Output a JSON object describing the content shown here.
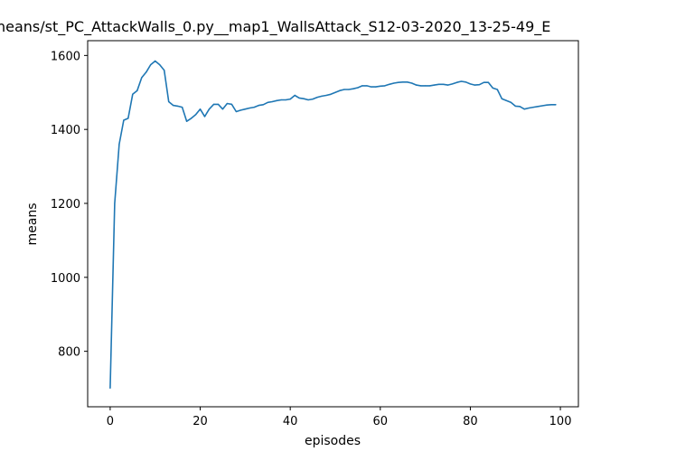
{
  "chart_data": {
    "type": "line",
    "title": "neans/st_PC_AttackWalls_0.py__map1_WallsAttack_S12-03-2020_13-25-49_E",
    "xlabel": "episodes",
    "ylabel": "means",
    "xlim": [
      -5,
      104
    ],
    "ylim": [
      650,
      1640
    ],
    "xticks": [
      0,
      20,
      40,
      60,
      80,
      100
    ],
    "yticks": [
      800,
      1000,
      1200,
      1400,
      1600
    ],
    "grid": false,
    "series": [
      {
        "color": "#1f77b4",
        "x": [
          0,
          1,
          2,
          3,
          4,
          5,
          6,
          7,
          8,
          9,
          10,
          11,
          12,
          13,
          14,
          15,
          16,
          17,
          18,
          19,
          20,
          21,
          22,
          23,
          24,
          25,
          26,
          27,
          28,
          29,
          30,
          31,
          32,
          33,
          34,
          35,
          36,
          37,
          38,
          39,
          40,
          41,
          42,
          43,
          44,
          45,
          46,
          47,
          48,
          49,
          50,
          51,
          52,
          53,
          54,
          55,
          56,
          57,
          58,
          59,
          60,
          61,
          62,
          63,
          64,
          65,
          66,
          67,
          68,
          69,
          70,
          71,
          72,
          73,
          74,
          75,
          76,
          77,
          78,
          79,
          80,
          81,
          82,
          83,
          84,
          85,
          86,
          87,
          88,
          89,
          90,
          91,
          92,
          93,
          94,
          95,
          96,
          97,
          98,
          99
        ],
        "y": [
          700,
          1200,
          1360,
          1425,
          1430,
          1495,
          1505,
          1540,
          1555,
          1575,
          1585,
          1575,
          1560,
          1475,
          1465,
          1463,
          1460,
          1422,
          1430,
          1440,
          1455,
          1435,
          1455,
          1468,
          1468,
          1455,
          1470,
          1468,
          1448,
          1452,
          1455,
          1458,
          1460,
          1465,
          1467,
          1473,
          1475,
          1478,
          1480,
          1480,
          1482,
          1492,
          1485,
          1483,
          1480,
          1482,
          1487,
          1490,
          1492,
          1495,
          1500,
          1505,
          1508,
          1508,
          1510,
          1513,
          1518,
          1518,
          1515,
          1515,
          1517,
          1518,
          1522,
          1525,
          1527,
          1528,
          1528,
          1525,
          1520,
          1518,
          1518,
          1518,
          1520,
          1522,
          1522,
          1520,
          1523,
          1527,
          1530,
          1528,
          1523,
          1520,
          1521,
          1527,
          1527,
          1512,
          1508,
          1483,
          1478,
          1473,
          1463,
          1462,
          1455,
          1458,
          1460,
          1462,
          1464,
          1466,
          1467,
          1467
        ]
      }
    ]
  }
}
